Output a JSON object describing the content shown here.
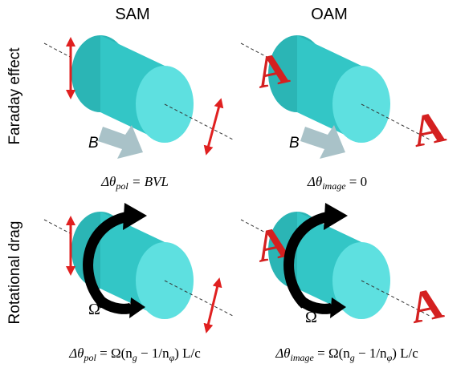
{
  "header": {
    "columns": [
      "SAM",
      "OAM"
    ],
    "rows": [
      "Faraday effect",
      "Rotational drag"
    ]
  },
  "panels": [
    {
      "field_label": "B",
      "equation": [
        {
          "t": "Δθ"
        },
        {
          "sub": "pol"
        },
        {
          "t": " = BVL"
        }
      ]
    },
    {
      "field_label": "B",
      "image_letters": [
        "A",
        "A"
      ],
      "equation": [
        {
          "t": "Δθ"
        },
        {
          "sub": "image"
        },
        {
          "t": " = 0"
        }
      ]
    },
    {
      "rotation_label": "Ω",
      "equation": [
        {
          "t": "Δθ"
        },
        {
          "sub": "pol"
        },
        {
          "t": " = Ω(n"
        },
        {
          "sub": "g"
        },
        {
          "t": " − 1/n"
        },
        {
          "sub": "φ"
        },
        {
          "t": ") L/c"
        }
      ]
    },
    {
      "rotation_label": "Ω",
      "image_letters": [
        "A",
        "A"
      ],
      "equation": [
        {
          "t": "Δθ"
        },
        {
          "sub": "image"
        },
        {
          "t": " = Ω(n"
        },
        {
          "sub": "g"
        },
        {
          "t": " − 1/n"
        },
        {
          "sub": "φ"
        },
        {
          "t": ") L/c"
        }
      ]
    }
  ]
}
